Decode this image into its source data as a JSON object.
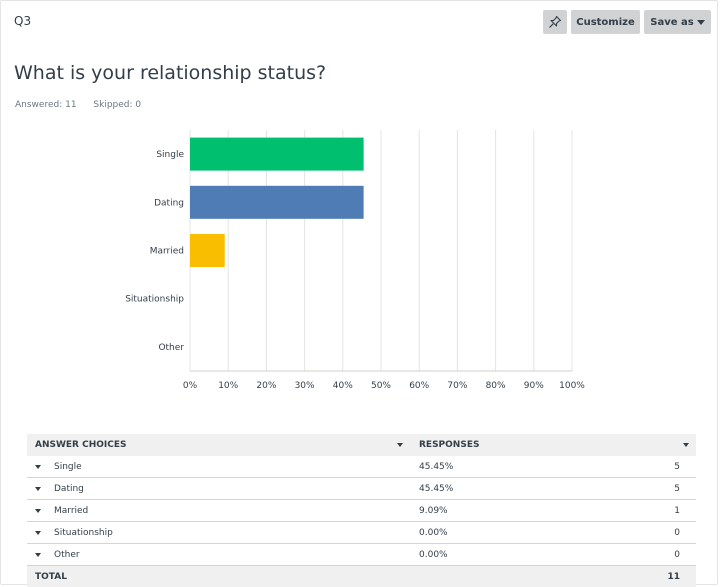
{
  "question": {
    "number": "Q3",
    "title": "What is your relationship status?",
    "answered_label": "Answered: 11",
    "skipped_label": "Skipped: 0"
  },
  "toolbar": {
    "pin_icon": "pin-icon",
    "customize_label": "Customize",
    "saveas_label": "Save as"
  },
  "chart_data": {
    "type": "bar",
    "orientation": "horizontal",
    "categories": [
      "Single",
      "Dating",
      "Married",
      "Situationship",
      "Other"
    ],
    "values": [
      45.45,
      45.45,
      9.09,
      0,
      0
    ],
    "colors": [
      "#00bf6f",
      "#507cb6",
      "#f9be00",
      "#6bc8cd",
      "#ff8b4f"
    ],
    "xlim": [
      0,
      100
    ],
    "xticks": [
      "0%",
      "10%",
      "20%",
      "30%",
      "40%",
      "50%",
      "60%",
      "70%",
      "80%",
      "90%",
      "100%"
    ],
    "grid": true
  },
  "table": {
    "headers": [
      "Answer Choices",
      "Responses"
    ],
    "rows": [
      {
        "label": "Single",
        "percent": "45.45%",
        "count": "5"
      },
      {
        "label": "Dating",
        "percent": "45.45%",
        "count": "5"
      },
      {
        "label": "Married",
        "percent": "9.09%",
        "count": "1"
      },
      {
        "label": "Situationship",
        "percent": "0.00%",
        "count": "0"
      },
      {
        "label": "Other",
        "percent": "0.00%",
        "count": "0"
      }
    ],
    "total_label": "Total",
    "total_count": "11"
  }
}
